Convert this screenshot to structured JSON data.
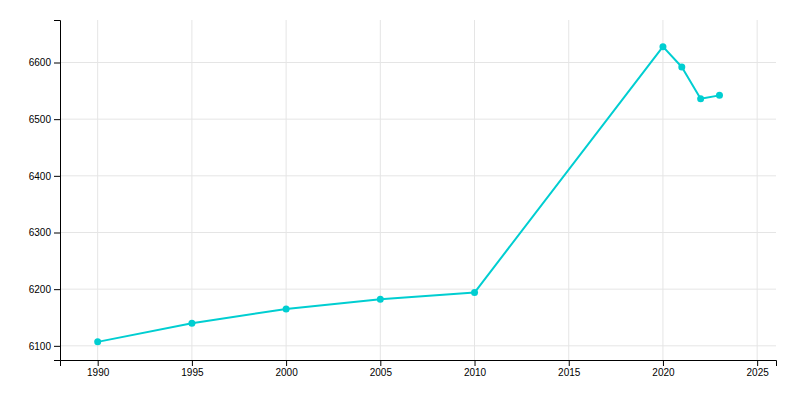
{
  "chart_data": {
    "type": "line",
    "x": [
      1990,
      1995,
      2000,
      2005,
      2010,
      2020,
      2021,
      2022,
      2023
    ],
    "values": [
      6107,
      6140,
      6165,
      6182,
      6194,
      6628,
      6592,
      6536,
      6542
    ],
    "color": "#00CED1",
    "marker": "circle",
    "xlim": [
      1988,
      2026
    ],
    "ylim": [
      6075,
      6675
    ],
    "xticks": [
      1990,
      1995,
      2000,
      2005,
      2010,
      2015,
      2020,
      2025
    ],
    "yticks": [
      6100,
      6200,
      6300,
      6400,
      6500,
      6600
    ],
    "grid": true
  }
}
